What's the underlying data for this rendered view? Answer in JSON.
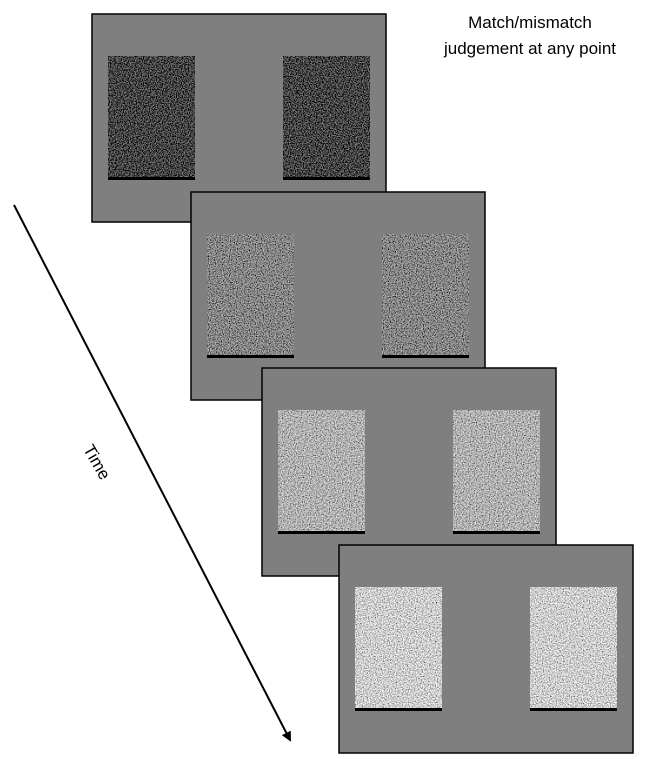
{
  "annotation": {
    "lines": [
      "Match/mismatch",
      "judgement at any point"
    ]
  },
  "axis_label": "Time"
}
